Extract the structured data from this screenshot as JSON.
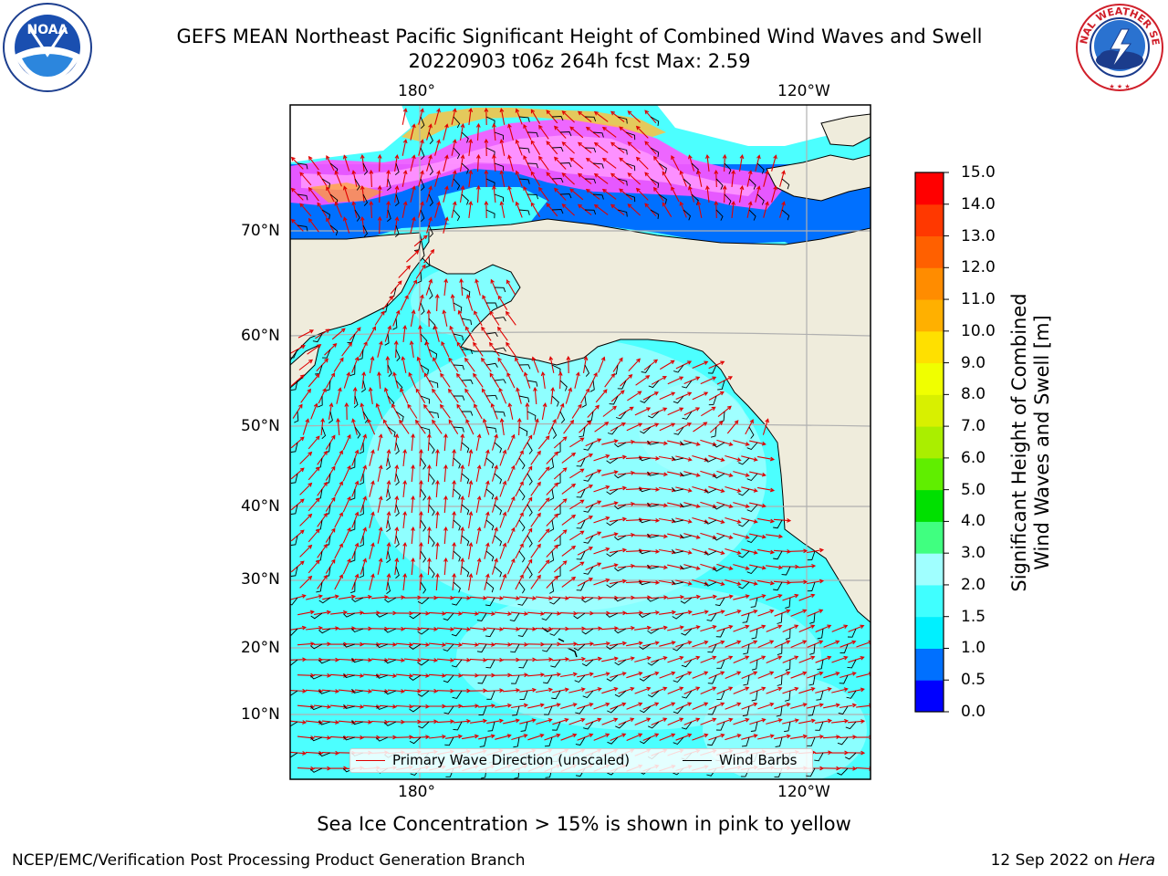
{
  "header": {
    "title_line1": "GEFS MEAN Northeast Pacific Significant Height of Combined Wind Waves and Swell",
    "title_line2": "20220903 t06z 264h fcst   Max: 2.59"
  },
  "logos": {
    "noaa_text": "NOAA",
    "noaa_ring": "NATIONAL OCEANIC AND ATMOSPHERIC ADMINISTRATION · U.S. DEPARTMENT OF COMMERCE",
    "nws_ring": "NATIONAL WEATHER SERVICE"
  },
  "map": {
    "lon_labels_top": [
      "180°",
      "120°W"
    ],
    "lon_labels_bottom": [
      "180°",
      "120°W"
    ],
    "lat_labels": [
      "70°N",
      "60°N",
      "50°N",
      "40°N",
      "30°N",
      "20°N",
      "10°N"
    ],
    "legend": {
      "wave_dir": "Primary Wave Direction (unscaled)",
      "wind_barbs": "Wind Barbs"
    },
    "colors": {
      "land": "#efecdc",
      "wave_arrow": "#e00000",
      "wind_barb": "#000000",
      "grid": "#b0b0b0"
    }
  },
  "colorbar": {
    "label_line1": "Significant Height of Combined",
    "label_line2": "Wind Waves and Swell [m]",
    "ticks": [
      "15.0",
      "14.0",
      "13.0",
      "12.0",
      "11.0",
      "10.0",
      "9.0",
      "8.0",
      "7.0",
      "6.0",
      "5.0",
      "4.0",
      "3.0",
      "2.0",
      "1.5",
      "1.0",
      "0.5",
      "0.0"
    ],
    "colors_bottom_to_top": [
      "#0000ff",
      "#0070ff",
      "#00f0ff",
      "#40ffff",
      "#a0ffff",
      "#40ff80",
      "#00e000",
      "#60ee00",
      "#aaee00",
      "#d8f000",
      "#f0ff00",
      "#ffe000",
      "#ffb000",
      "#ff8c00",
      "#ff6000",
      "#ff3800",
      "#ff0000"
    ]
  },
  "notes": {
    "ice": "Sea Ice Concentration > 15% is shown in pink to yellow",
    "footer_left": "NCEP/EMC/Verification Post Processing Product Generation Branch",
    "footer_right_date": "12 Sep 2022 on",
    "footer_right_host": "Hera"
  }
}
